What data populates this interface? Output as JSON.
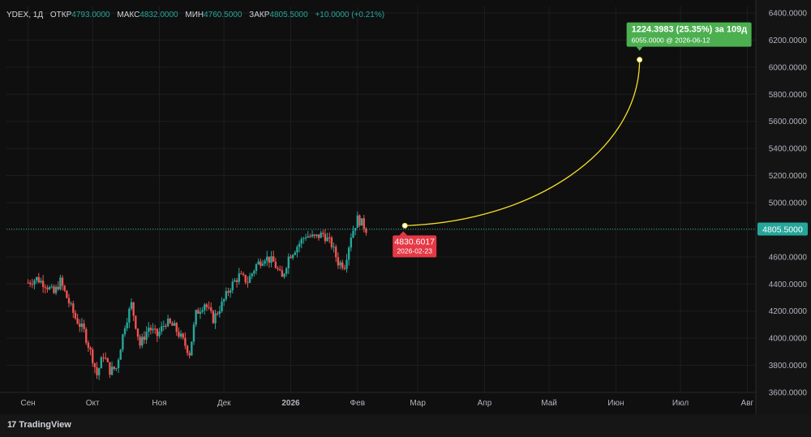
{
  "header": {
    "symbol": "YDEX, 1Д",
    "open_label": "ОТКР",
    "open": "4793.0000",
    "high_label": "МАКС",
    "high": "4832.0000",
    "low_label": "МИН",
    "low": "4760.5000",
    "close_label": "ЗАКР",
    "close": "4805.5000",
    "change": "+10.0000 (+0.21%)"
  },
  "footer": {
    "brand": "TradingView",
    "brand_icon": "17"
  },
  "colors": {
    "background": "#0f0f0f",
    "grid": "#1e1e1e",
    "up": "#26a69a",
    "down": "#ef5350",
    "projection": "#f5e028",
    "end_badge": "#4caf50",
    "start_badge": "#e53945"
  },
  "chart_data": {
    "type": "candlestick",
    "title": "YDEX, 1Д",
    "ylim": [
      3600,
      6400
    ],
    "y_ticks": [
      "6400.0000",
      "6200.0000",
      "6000.0000",
      "5800.0000",
      "5600.0000",
      "5400.0000",
      "5200.0000",
      "5000.0000",
      "4800.0000",
      "4600.0000",
      "4400.0000",
      "4200.0000",
      "4000.0000",
      "3800.0000",
      "3600.0000"
    ],
    "x_ticks": [
      {
        "label": "Сен",
        "day": 0
      },
      {
        "label": "Окт",
        "day": 30
      },
      {
        "label": "Ноя",
        "day": 61
      },
      {
        "label": "Дек",
        "day": 91
      },
      {
        "label": "2026",
        "day": 122,
        "bold": true
      },
      {
        "label": "Фев",
        "day": 153
      },
      {
        "label": "Мар",
        "day": 181
      },
      {
        "label": "Апр",
        "day": 212
      },
      {
        "label": "Май",
        "day": 242
      },
      {
        "label": "Июн",
        "day": 273
      },
      {
        "label": "Июл",
        "day": 303
      },
      {
        "label": "Авг",
        "day": 334
      }
    ],
    "x_range_days": [
      -10,
      338
    ],
    "last_price": "4805.5000",
    "last_price_value": 4805.5,
    "price_path": [
      {
        "day": 0,
        "price": 4410
      },
      {
        "day": 4,
        "price": 4440
      },
      {
        "day": 8,
        "price": 4400
      },
      {
        "day": 12,
        "price": 4330
      },
      {
        "day": 15,
        "price": 4420
      },
      {
        "day": 18,
        "price": 4300
      },
      {
        "day": 22,
        "price": 4150
      },
      {
        "day": 26,
        "price": 4050
      },
      {
        "day": 30,
        "price": 3850
      },
      {
        "day": 32,
        "price": 3730
      },
      {
        "day": 35,
        "price": 3880
      },
      {
        "day": 38,
        "price": 3760
      },
      {
        "day": 41,
        "price": 3780
      },
      {
        "day": 45,
        "price": 4100
      },
      {
        "day": 48,
        "price": 4250
      },
      {
        "day": 52,
        "price": 3950
      },
      {
        "day": 56,
        "price": 4080
      },
      {
        "day": 60,
        "price": 4020
      },
      {
        "day": 64,
        "price": 4120
      },
      {
        "day": 68,
        "price": 4080
      },
      {
        "day": 72,
        "price": 3980
      },
      {
        "day": 75,
        "price": 3890
      },
      {
        "day": 78,
        "price": 4180
      },
      {
        "day": 82,
        "price": 4260
      },
      {
        "day": 86,
        "price": 4140
      },
      {
        "day": 90,
        "price": 4250
      },
      {
        "day": 94,
        "price": 4380
      },
      {
        "day": 98,
        "price": 4460
      },
      {
        "day": 102,
        "price": 4420
      },
      {
        "day": 106,
        "price": 4540
      },
      {
        "day": 110,
        "price": 4600
      },
      {
        "day": 114,
        "price": 4560
      },
      {
        "day": 118,
        "price": 4440
      },
      {
        "day": 121,
        "price": 4600
      },
      {
        "day": 125,
        "price": 4680
      },
      {
        "day": 129,
        "price": 4760
      },
      {
        "day": 133,
        "price": 4740
      },
      {
        "day": 137,
        "price": 4770
      },
      {
        "day": 141,
        "price": 4690
      },
      {
        "day": 144,
        "price": 4560
      },
      {
        "day": 147,
        "price": 4540
      },
      {
        "day": 150,
        "price": 4760
      },
      {
        "day": 153,
        "price": 4880
      },
      {
        "day": 155,
        "price": 4850
      },
      {
        "day": 157,
        "price": 4805
      }
    ],
    "projection": {
      "start_price": "4830.6017",
      "start_price_value": 4830.6017,
      "start_date": "2026-02-23",
      "start_day": 175,
      "end_price": "6055.0000",
      "end_price_value": 6055,
      "end_date": "2026-06-12",
      "end_day": 284,
      "change_text": "1224.3983 (25.35%) за 109д",
      "end_text": "6055.0000 @ 2026-06-12"
    }
  }
}
